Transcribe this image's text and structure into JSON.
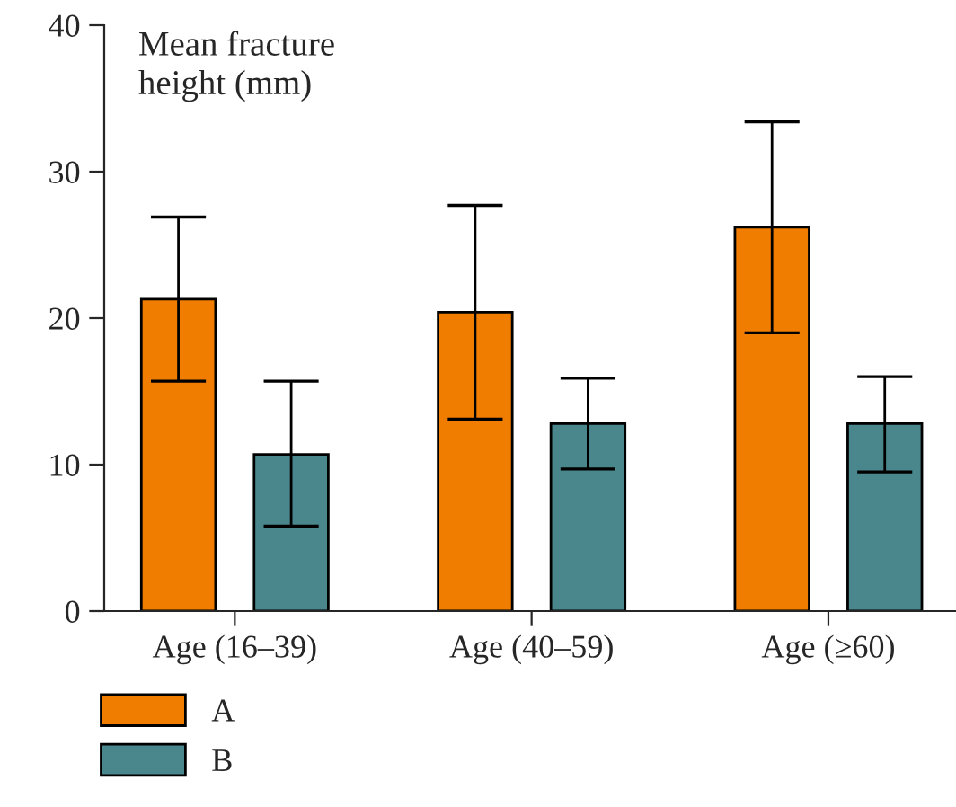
{
  "chart_data": {
    "type": "bar",
    "ylabel": "Mean fracture\nheight (mm)",
    "categories": [
      "Age (16–39)",
      "Age (40–59)",
      "Age (≥60)"
    ],
    "series": [
      {
        "name": "A",
        "color": "#f07c00",
        "values": [
          21.3,
          20.4,
          26.2
        ],
        "errors": [
          [
            15.7,
            26.9
          ],
          [
            13.1,
            27.7
          ],
          [
            19.0,
            33.4
          ]
        ]
      },
      {
        "name": "B",
        "color": "#4a878c",
        "values": [
          10.7,
          12.8,
          12.8
        ],
        "errors": [
          [
            5.8,
            15.7
          ],
          [
            9.7,
            15.9
          ],
          [
            9.5,
            16.0
          ]
        ]
      }
    ],
    "ylim": [
      0,
      40
    ],
    "yticks": [
      0,
      10,
      20,
      30,
      40
    ],
    "grid": false,
    "legend": "bottom left"
  }
}
